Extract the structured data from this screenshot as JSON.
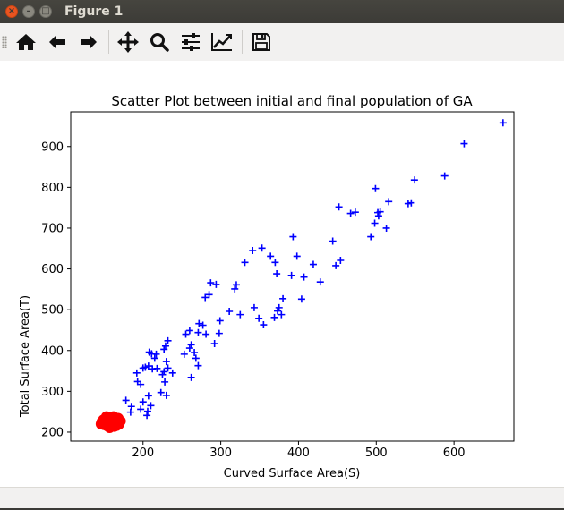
{
  "window": {
    "title": "Figure 1",
    "close_glyph": "×",
    "min_glyph": "–",
    "max_glyph": "□"
  },
  "toolbar": {
    "icons": [
      "home-icon",
      "back-arrow-icon",
      "forward-arrow-icon",
      "pan-icon",
      "zoom-icon",
      "configure-subplots-icon",
      "edit-axis-icon",
      "save-icon"
    ]
  },
  "chart_data": {
    "type": "scatter",
    "title": "Scatter Plot between initial and final population of GA",
    "xlabel": "Curved Surface Area(S)",
    "ylabel": "Total Surface Area(T)",
    "xlim": [
      107,
      677
    ],
    "ylim": [
      178,
      985
    ],
    "xticks": [
      200,
      300,
      400,
      500,
      600
    ],
    "yticks": [
      200,
      300,
      400,
      500,
      600,
      700,
      800,
      900
    ],
    "grid": false,
    "series": [
      {
        "color": "#0000ff",
        "marker": "+",
        "points": [
          [
            663,
            958
          ],
          [
            613,
            907
          ],
          [
            588,
            828
          ],
          [
            549,
            818
          ],
          [
            545,
            762
          ],
          [
            541,
            760
          ],
          [
            516,
            765
          ],
          [
            513,
            700
          ],
          [
            505,
            740
          ],
          [
            502,
            738
          ],
          [
            499,
            797
          ],
          [
            493,
            679
          ],
          [
            503,
            730
          ],
          [
            498,
            712
          ],
          [
            473,
            739
          ],
          [
            467,
            736
          ],
          [
            452,
            752
          ],
          [
            454,
            621
          ],
          [
            448,
            608
          ],
          [
            444,
            668
          ],
          [
            428,
            568
          ],
          [
            419,
            611
          ],
          [
            407,
            580
          ],
          [
            404,
            526
          ],
          [
            398,
            631
          ],
          [
            393,
            679
          ],
          [
            391,
            584
          ],
          [
            380,
            527
          ],
          [
            378,
            488
          ],
          [
            375,
            505
          ],
          [
            373,
            497
          ],
          [
            369,
            481
          ],
          [
            372,
            588
          ],
          [
            370,
            616
          ],
          [
            364,
            631
          ],
          [
            353,
            651
          ],
          [
            341,
            645
          ],
          [
            355,
            463
          ],
          [
            349,
            479
          ],
          [
            343,
            505
          ],
          [
            331,
            616
          ],
          [
            325,
            488
          ],
          [
            320,
            561
          ],
          [
            318,
            551
          ],
          [
            311,
            496
          ],
          [
            299,
            473
          ],
          [
            298,
            442
          ],
          [
            294,
            562
          ],
          [
            292,
            417
          ],
          [
            287,
            566
          ],
          [
            285,
            537
          ],
          [
            280,
            530
          ],
          [
            277,
            462
          ],
          [
            281,
            440
          ],
          [
            272,
            466
          ],
          [
            271,
            444
          ],
          [
            271,
            363
          ],
          [
            268,
            381
          ],
          [
            266,
            395
          ],
          [
            260,
            406
          ],
          [
            262,
            414
          ],
          [
            260,
            449
          ],
          [
            255,
            440
          ],
          [
            253,
            391
          ],
          [
            262,
            334
          ],
          [
            238,
            345
          ],
          [
            232,
            424
          ],
          [
            229,
            411
          ],
          [
            230,
            373
          ],
          [
            227,
            348
          ],
          [
            227,
            403
          ],
          [
            232,
            357
          ],
          [
            230,
            290
          ],
          [
            228,
            323
          ],
          [
            225,
            341
          ],
          [
            223,
            297
          ],
          [
            218,
            356
          ],
          [
            217,
            391
          ],
          [
            215,
            381
          ],
          [
            211,
            392
          ],
          [
            212,
            355
          ],
          [
            208,
            396
          ],
          [
            207,
            362
          ],
          [
            203,
            359
          ],
          [
            210,
            265
          ],
          [
            207,
            289
          ],
          [
            206,
            251
          ],
          [
            205,
            241
          ],
          [
            200,
            274
          ],
          [
            197,
            317
          ],
          [
            200,
            357
          ],
          [
            193,
            324
          ],
          [
            192,
            345
          ],
          [
            185,
            263
          ],
          [
            197,
            256
          ],
          [
            184,
            249
          ],
          [
            178,
            278
          ]
        ]
      },
      {
        "color": "#ff0000",
        "marker": "o",
        "points": [
          [
            147,
            225
          ],
          [
            150,
            218
          ],
          [
            152,
            233
          ],
          [
            155,
            229
          ],
          [
            157,
            222
          ],
          [
            154,
            215
          ],
          [
            158,
            236
          ],
          [
            160,
            219
          ],
          [
            161,
            229
          ],
          [
            163,
            214
          ],
          [
            165,
            232
          ],
          [
            167,
            225
          ],
          [
            169,
            219
          ],
          [
            153,
            238
          ],
          [
            149,
            230
          ],
          [
            157,
            211
          ],
          [
            162,
            238
          ],
          [
            166,
            216
          ],
          [
            151,
            222
          ],
          [
            159,
            226
          ],
          [
            171,
            227
          ],
          [
            168,
            234
          ],
          [
            146,
            220
          ],
          [
            155,
            224
          ]
        ]
      }
    ]
  }
}
